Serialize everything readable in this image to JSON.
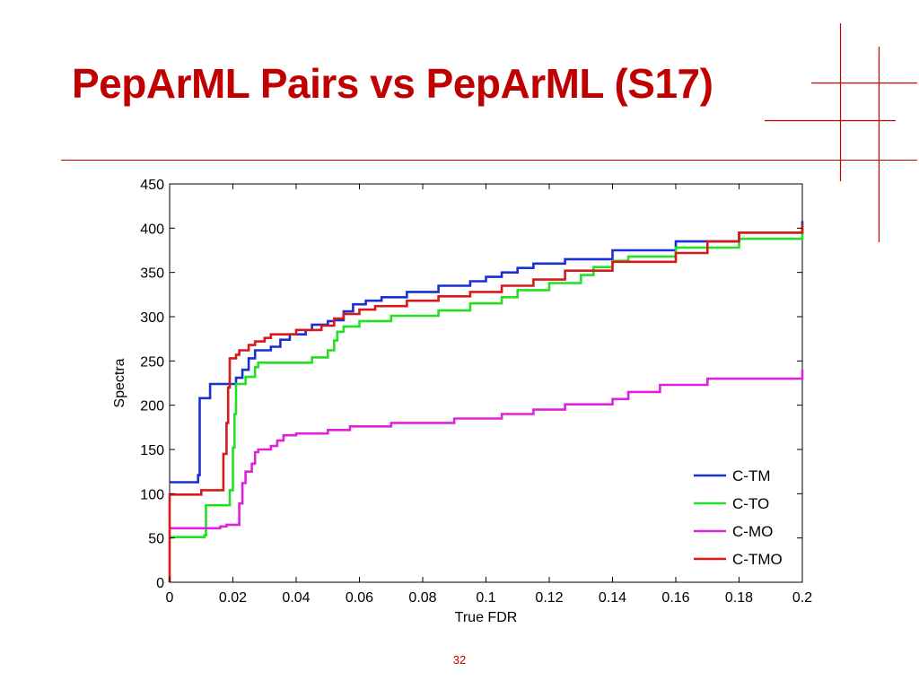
{
  "slide": {
    "title": "PepArML Pairs vs PepArML (S17)",
    "page_number": "32",
    "accent_color": "#c00000"
  },
  "chart_data": {
    "type": "line",
    "title": "",
    "xlabel": "True FDR",
    "ylabel": "Spectra",
    "xlim": [
      0,
      0.2
    ],
    "ylim": [
      0,
      450
    ],
    "x_ticks": [
      "0",
      "0.02",
      "0.04",
      "0.06",
      "0.08",
      "0.1",
      "0.12",
      "0.14",
      "0.16",
      "0.18",
      "0.2"
    ],
    "y_ticks": [
      "0",
      "50",
      "100",
      "150",
      "200",
      "250",
      "300",
      "350",
      "400",
      "450"
    ],
    "grid": false,
    "legend_position": "bottom-right",
    "series": [
      {
        "name": "C-TM",
        "color": "#1a2fd6",
        "points": [
          [
            0,
            113
          ],
          [
            0.009,
            113
          ],
          [
            0.009,
            121
          ],
          [
            0.0095,
            121
          ],
          [
            0.0095,
            208
          ],
          [
            0.0128,
            208
          ],
          [
            0.0128,
            224
          ],
          [
            0.021,
            224
          ],
          [
            0.021,
            231
          ],
          [
            0.023,
            231
          ],
          [
            0.023,
            240
          ],
          [
            0.025,
            240
          ],
          [
            0.025,
            253
          ],
          [
            0.027,
            253
          ],
          [
            0.027,
            262
          ],
          [
            0.032,
            262
          ],
          [
            0.032,
            266
          ],
          [
            0.035,
            266
          ],
          [
            0.035,
            274
          ],
          [
            0.038,
            274
          ],
          [
            0.038,
            280
          ],
          [
            0.043,
            280
          ],
          [
            0.043,
            285
          ],
          [
            0.045,
            285
          ],
          [
            0.045,
            291
          ],
          [
            0.05,
            291
          ],
          [
            0.05,
            295
          ],
          [
            0.052,
            295
          ],
          [
            0.052,
            296
          ],
          [
            0.055,
            296
          ],
          [
            0.055,
            306
          ],
          [
            0.058,
            306
          ],
          [
            0.058,
            314
          ],
          [
            0.062,
            314
          ],
          [
            0.062,
            318
          ],
          [
            0.067,
            318
          ],
          [
            0.067,
            322
          ],
          [
            0.075,
            322
          ],
          [
            0.075,
            328
          ],
          [
            0.085,
            328
          ],
          [
            0.085,
            335
          ],
          [
            0.095,
            335
          ],
          [
            0.095,
            340
          ],
          [
            0.1,
            340
          ],
          [
            0.1,
            345
          ],
          [
            0.105,
            345
          ],
          [
            0.105,
            350
          ],
          [
            0.11,
            350
          ],
          [
            0.11,
            355
          ],
          [
            0.115,
            355
          ],
          [
            0.115,
            360
          ],
          [
            0.125,
            360
          ],
          [
            0.125,
            365
          ],
          [
            0.14,
            365
          ],
          [
            0.14,
            375
          ],
          [
            0.16,
            375
          ],
          [
            0.16,
            385
          ],
          [
            0.18,
            385
          ],
          [
            0.18,
            395
          ],
          [
            0.2,
            395
          ],
          [
            0.2,
            408
          ]
        ]
      },
      {
        "name": "C-TO",
        "color": "#22e022",
        "points": [
          [
            0,
            51
          ],
          [
            0.011,
            51
          ],
          [
            0.011,
            53
          ],
          [
            0.0115,
            53
          ],
          [
            0.0115,
            87
          ],
          [
            0.019,
            87
          ],
          [
            0.019,
            104
          ],
          [
            0.02,
            104
          ],
          [
            0.02,
            152
          ],
          [
            0.0205,
            152
          ],
          [
            0.0205,
            190
          ],
          [
            0.021,
            190
          ],
          [
            0.021,
            224
          ],
          [
            0.024,
            224
          ],
          [
            0.024,
            232
          ],
          [
            0.027,
            232
          ],
          [
            0.027,
            243
          ],
          [
            0.028,
            243
          ],
          [
            0.028,
            248
          ],
          [
            0.045,
            248
          ],
          [
            0.045,
            254
          ],
          [
            0.05,
            254
          ],
          [
            0.05,
            262
          ],
          [
            0.052,
            262
          ],
          [
            0.052,
            273
          ],
          [
            0.053,
            273
          ],
          [
            0.053,
            283
          ],
          [
            0.055,
            283
          ],
          [
            0.055,
            289
          ],
          [
            0.06,
            289
          ],
          [
            0.06,
            295
          ],
          [
            0.07,
            295
          ],
          [
            0.07,
            301
          ],
          [
            0.085,
            301
          ],
          [
            0.085,
            307
          ],
          [
            0.095,
            307
          ],
          [
            0.095,
            315
          ],
          [
            0.105,
            315
          ],
          [
            0.105,
            322
          ],
          [
            0.11,
            322
          ],
          [
            0.11,
            330
          ],
          [
            0.12,
            330
          ],
          [
            0.12,
            338
          ],
          [
            0.13,
            338
          ],
          [
            0.13,
            347
          ],
          [
            0.134,
            347
          ],
          [
            0.134,
            356
          ],
          [
            0.14,
            356
          ],
          [
            0.14,
            363
          ],
          [
            0.145,
            363
          ],
          [
            0.145,
            368
          ],
          [
            0.16,
            368
          ],
          [
            0.16,
            378
          ],
          [
            0.18,
            378
          ],
          [
            0.18,
            388
          ],
          [
            0.2,
            388
          ],
          [
            0.2,
            400
          ]
        ]
      },
      {
        "name": "C-MO",
        "color": "#dd22dd",
        "points": [
          [
            0,
            61
          ],
          [
            0.016,
            61
          ],
          [
            0.016,
            63
          ],
          [
            0.018,
            63
          ],
          [
            0.018,
            65
          ],
          [
            0.022,
            65
          ],
          [
            0.022,
            89
          ],
          [
            0.023,
            89
          ],
          [
            0.023,
            112
          ],
          [
            0.024,
            112
          ],
          [
            0.024,
            125
          ],
          [
            0.026,
            125
          ],
          [
            0.026,
            134
          ],
          [
            0.027,
            134
          ],
          [
            0.027,
            147
          ],
          [
            0.028,
            147
          ],
          [
            0.028,
            150
          ],
          [
            0.032,
            150
          ],
          [
            0.032,
            154
          ],
          [
            0.034,
            154
          ],
          [
            0.034,
            160
          ],
          [
            0.036,
            160
          ],
          [
            0.036,
            166
          ],
          [
            0.04,
            166
          ],
          [
            0.04,
            168
          ],
          [
            0.05,
            168
          ],
          [
            0.05,
            172
          ],
          [
            0.057,
            172
          ],
          [
            0.057,
            176
          ],
          [
            0.07,
            176
          ],
          [
            0.07,
            180
          ],
          [
            0.09,
            180
          ],
          [
            0.09,
            185
          ],
          [
            0.105,
            185
          ],
          [
            0.105,
            190
          ],
          [
            0.115,
            190
          ],
          [
            0.115,
            195
          ],
          [
            0.125,
            195
          ],
          [
            0.125,
            201
          ],
          [
            0.14,
            201
          ],
          [
            0.14,
            207
          ],
          [
            0.145,
            207
          ],
          [
            0.145,
            215
          ],
          [
            0.155,
            215
          ],
          [
            0.155,
            223
          ],
          [
            0.17,
            223
          ],
          [
            0.17,
            230
          ],
          [
            0.2,
            230
          ],
          [
            0.2,
            240
          ]
        ]
      },
      {
        "name": "C-TMO",
        "color": "#d61a1a",
        "points": [
          [
            0,
            0
          ],
          [
            0,
            99
          ],
          [
            0.01,
            99
          ],
          [
            0.01,
            104
          ],
          [
            0.017,
            104
          ],
          [
            0.017,
            145
          ],
          [
            0.018,
            145
          ],
          [
            0.018,
            180
          ],
          [
            0.0185,
            180
          ],
          [
            0.0185,
            220
          ],
          [
            0.019,
            220
          ],
          [
            0.019,
            253
          ],
          [
            0.021,
            253
          ],
          [
            0.021,
            257
          ],
          [
            0.022,
            257
          ],
          [
            0.022,
            262
          ],
          [
            0.025,
            262
          ],
          [
            0.025,
            268
          ],
          [
            0.027,
            268
          ],
          [
            0.027,
            272
          ],
          [
            0.03,
            272
          ],
          [
            0.03,
            276
          ],
          [
            0.032,
            276
          ],
          [
            0.032,
            280
          ],
          [
            0.04,
            280
          ],
          [
            0.04,
            285
          ],
          [
            0.048,
            285
          ],
          [
            0.048,
            290
          ],
          [
            0.052,
            290
          ],
          [
            0.052,
            298
          ],
          [
            0.055,
            298
          ],
          [
            0.055,
            303
          ],
          [
            0.06,
            303
          ],
          [
            0.06,
            308
          ],
          [
            0.065,
            308
          ],
          [
            0.065,
            312
          ],
          [
            0.075,
            312
          ],
          [
            0.075,
            318
          ],
          [
            0.085,
            318
          ],
          [
            0.085,
            323
          ],
          [
            0.095,
            323
          ],
          [
            0.095,
            328
          ],
          [
            0.105,
            328
          ],
          [
            0.105,
            335
          ],
          [
            0.115,
            335
          ],
          [
            0.115,
            342
          ],
          [
            0.125,
            342
          ],
          [
            0.125,
            352
          ],
          [
            0.14,
            352
          ],
          [
            0.14,
            362
          ],
          [
            0.16,
            362
          ],
          [
            0.16,
            372
          ],
          [
            0.17,
            372
          ],
          [
            0.17,
            385
          ],
          [
            0.18,
            385
          ],
          [
            0.18,
            395
          ],
          [
            0.2,
            395
          ],
          [
            0.2,
            405
          ]
        ]
      }
    ]
  }
}
